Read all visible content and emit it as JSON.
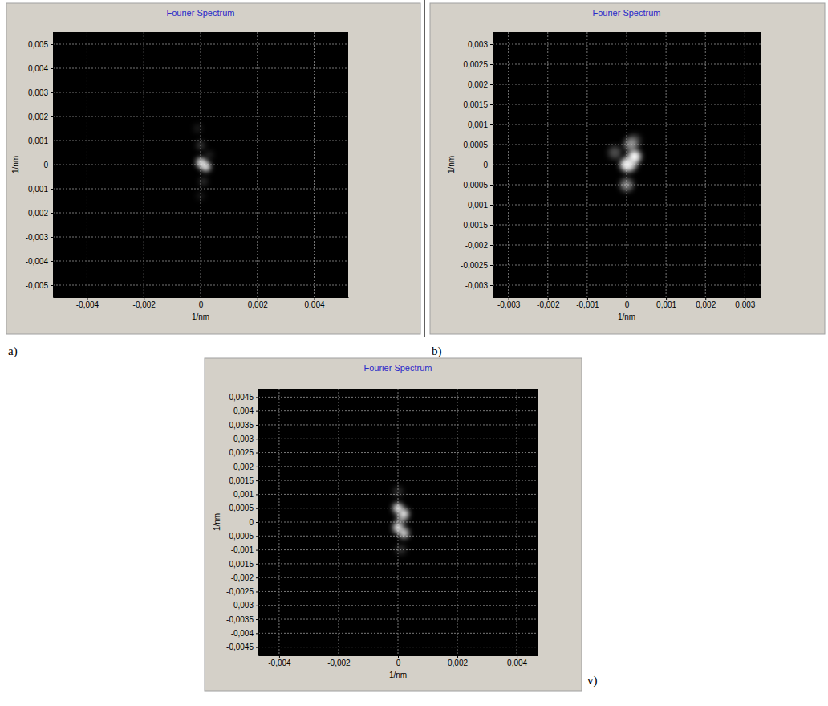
{
  "chart_data": [
    {
      "type": "scatter",
      "panel": "a)",
      "title": "Fourier Spectrum",
      "x_label": "1/nm",
      "y_label": "1/nm",
      "color": "#ffffff",
      "grid": true,
      "x": [
        0.0,
        0.0002,
        0.0001,
        0.0,
        0.0001,
        -0.0001,
        0.0,
        0.0003
      ],
      "values": [
        0.0001,
        -0.0001,
        0.0,
        0.0008,
        -0.0007,
        0.0015,
        -0.0013,
        0.0004
      ],
      "intensity": [
        1,
        1,
        0.8,
        0.25,
        0.2,
        0.12,
        0.1,
        0.15
      ],
      "xlim": [
        -0.0052,
        0.0052
      ],
      "ylim": [
        -0.0055,
        0.0055
      ],
      "xticks": [
        {
          "value": -0.004,
          "label": "-0,004"
        },
        {
          "value": -0.002,
          "label": "-0,002"
        },
        0,
        {
          "value": 0.002,
          "label": "0,002"
        },
        {
          "value": 0.004,
          "label": "0,004"
        }
      ],
      "yticks": [
        {
          "value": -0.005,
          "label": "-0,005"
        },
        {
          "value": -0.004,
          "label": "-0,004"
        },
        {
          "value": -0.003,
          "label": "-0,003"
        },
        {
          "value": -0.002,
          "label": "-0,002"
        },
        {
          "value": -0.001,
          "label": "-0,001"
        },
        0,
        {
          "value": 0.001,
          "label": "0,001"
        },
        {
          "value": 0.002,
          "label": "0,002"
        },
        {
          "value": 0.003,
          "label": "0,003"
        },
        {
          "value": 0.004,
          "label": "0,004"
        },
        {
          "value": 0.005,
          "label": "0,005"
        }
      ]
    },
    {
      "type": "scatter",
      "panel": "b)",
      "title": "Fourier Spectrum",
      "x_label": "1/nm",
      "y_label": "1/nm",
      "color": "#ffffff",
      "grid": true,
      "x": [
        0.0,
        0.0002,
        0.0001,
        0.0,
        0.0001,
        -0.0003,
        0.0002
      ],
      "values": [
        0.0,
        0.0002,
        0.0005,
        -0.0005,
        0.0,
        0.0003,
        0.0006
      ],
      "intensity": [
        0.9,
        1,
        0.5,
        0.5,
        0.6,
        0.3,
        0.25
      ],
      "xlim": [
        -0.0034,
        0.0034
      ],
      "ylim": [
        -0.0033,
        0.0033
      ],
      "xticks": [
        {
          "value": -0.003,
          "label": "-0,003"
        },
        {
          "value": -0.002,
          "label": "-0,002"
        },
        {
          "value": -0.001,
          "label": "-0,001"
        },
        0,
        {
          "value": 0.001,
          "label": "0,001"
        },
        {
          "value": 0.002,
          "label": "0,002"
        },
        {
          "value": 0.003,
          "label": "0,003"
        }
      ],
      "yticks": [
        {
          "value": -0.003,
          "label": "-0,003"
        },
        {
          "value": -0.0025,
          "label": "-0,0025"
        },
        {
          "value": -0.002,
          "label": "-0,002"
        },
        {
          "value": -0.0015,
          "label": "-0,0015"
        },
        {
          "value": -0.001,
          "label": "-0,001"
        },
        {
          "value": -0.0005,
          "label": "-0,0005"
        },
        0,
        {
          "value": 0.0005,
          "label": "0,0005"
        },
        {
          "value": 0.001,
          "label": "0,001"
        },
        {
          "value": 0.0015,
          "label": "0,0015"
        },
        {
          "value": 0.002,
          "label": "0,002"
        },
        {
          "value": 0.0025,
          "label": "0,0025"
        },
        {
          "value": 0.003,
          "label": "0,003"
        }
      ]
    },
    {
      "type": "scatter",
      "panel": "v)",
      "title": "Fourier Spectrum",
      "x_label": "1/nm",
      "y_label": "1/nm",
      "color": "#ffffff",
      "grid": true,
      "x": [
        0.0,
        0.0002,
        0.0,
        0.0002,
        0.0001,
        0.0,
        0.0001
      ],
      "values": [
        0.0005,
        0.0003,
        -0.0002,
        -0.0004,
        0.0001,
        0.0011,
        -0.001
      ],
      "intensity": [
        1,
        1,
        1,
        0.9,
        0.5,
        0.2,
        0.2
      ],
      "xlim": [
        -0.0047,
        0.0047
      ],
      "ylim": [
        -0.0048,
        0.0048
      ],
      "xticks": [
        {
          "value": -0.004,
          "label": "-0,004"
        },
        {
          "value": -0.002,
          "label": "-0,002"
        },
        0,
        {
          "value": 0.002,
          "label": "0,002"
        },
        {
          "value": 0.004,
          "label": "0,004"
        }
      ],
      "yticks": [
        {
          "value": -0.0045,
          "label": "-0,0045"
        },
        {
          "value": -0.004,
          "label": "-0,004"
        },
        {
          "value": -0.0035,
          "label": "-0,0035"
        },
        {
          "value": -0.003,
          "label": "-0,003"
        },
        {
          "value": -0.0025,
          "label": "-0,0025"
        },
        {
          "value": -0.002,
          "label": "-0,002"
        },
        {
          "value": -0.0015,
          "label": "-0,0015"
        },
        {
          "value": -0.001,
          "label": "-0,001"
        },
        {
          "value": -0.0005,
          "label": "-0,0005"
        },
        0,
        {
          "value": 0.0005,
          "label": "0,0005"
        },
        {
          "value": 0.001,
          "label": "0,001"
        },
        {
          "value": 0.0015,
          "label": "0,0015"
        },
        {
          "value": 0.002,
          "label": "0,002"
        },
        {
          "value": 0.0025,
          "label": "0,0025"
        },
        {
          "value": 0.003,
          "label": "0,003"
        },
        {
          "value": 0.0035,
          "label": "0,0035"
        },
        {
          "value": 0.004,
          "label": "0,004"
        },
        {
          "value": 0.0045,
          "label": "0,0045"
        }
      ]
    }
  ]
}
